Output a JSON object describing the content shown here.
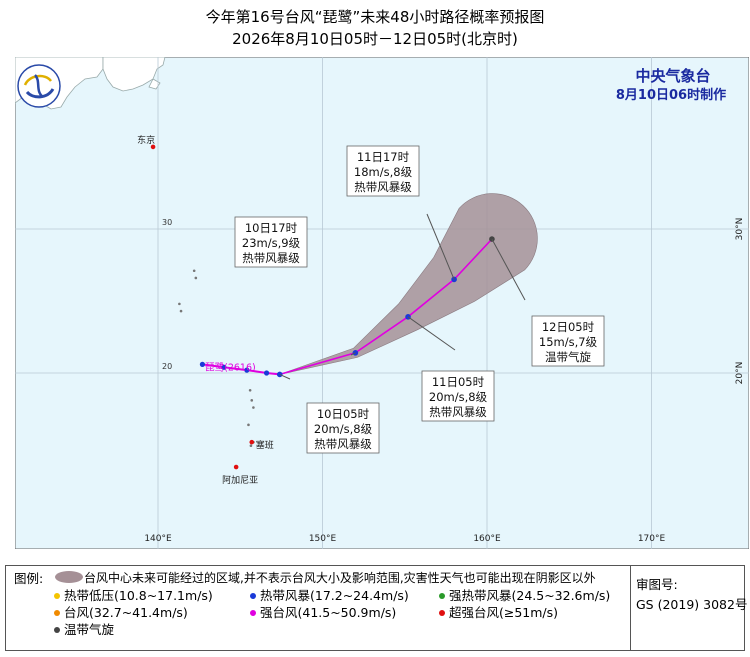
{
  "header": {
    "title": "今年第16号台风“琵鹭”未来48小时路径概率预报图",
    "subtitle": "2026年8月10日05时－12日05时(北京时)"
  },
  "agency": {
    "name": "中央气象台",
    "issued": "8月10日06时制作",
    "color": "#1a2aa0"
  },
  "map": {
    "ocean_color": "#e6f6fc",
    "land_color": "#ffffff",
    "lon_labels": [
      "140°E",
      "150°E",
      "160°E",
      "170°E"
    ],
    "lat_labels_left": [
      "30",
      "20"
    ],
    "lat_labels_right": [
      "30°N",
      "20°N"
    ],
    "places": [
      {
        "name": "东京",
        "lon": 139.7,
        "lat": 35.7
      },
      {
        "name": "塞班",
        "lon": 145.7,
        "lat": 15.2
      },
      {
        "name": "阿加尼亚",
        "lon": 144.75,
        "lat": 13.47
      }
    ],
    "storm_label": "琵鹭(2616)"
  },
  "track": {
    "line_color": "#e000e0",
    "cone_color": "#a59096",
    "past": [
      {
        "lon": 142.7,
        "lat": 20.6
      },
      {
        "lon": 144.0,
        "lat": 20.4
      },
      {
        "lon": 145.4,
        "lat": 20.2
      },
      {
        "lon": 146.6,
        "lat": 20.0
      },
      {
        "lon": 147.4,
        "lat": 19.9
      }
    ],
    "forecast": [
      {
        "lon": 147.4,
        "lat": 19.9,
        "time": "10日05时",
        "wind": "20m/s,8级",
        "grade": "热带风暴级"
      },
      {
        "lon": 152.0,
        "lat": 21.4,
        "time": "10日17时",
        "wind": "23m/s,9级",
        "grade": "热带风暴级"
      },
      {
        "lon": 155.2,
        "lat": 23.9,
        "time": "11日05时",
        "wind": "20m/s,8级",
        "grade": "热带风暴级"
      },
      {
        "lon": 158.0,
        "lat": 26.5,
        "time": "11日17时",
        "wind": "18m/s,8级",
        "grade": "热带风暴级"
      },
      {
        "lon": 160.3,
        "lat": 29.3,
        "time": "12日05时",
        "wind": "15m/s,7级",
        "grade": "温带气旋"
      }
    ]
  },
  "legend": {
    "heading": "图例:",
    "cone_desc": "台风中心未来可能经过的区域,并不表示台风大小及影响范围,灾害性天气也可能出现在阴影区以外",
    "items": [
      {
        "label": "热带低压(10.8~17.1m/s)",
        "color": "#f4c400"
      },
      {
        "label": "热带风暴(17.2~24.4m/s)",
        "color": "#1a3ad8"
      },
      {
        "label": "强热带风暴(24.5~32.6m/s)",
        "color": "#2a9a2a"
      },
      {
        "label": "台风(32.7~41.4m/s)",
        "color": "#f08a00"
      },
      {
        "label": "强台风(41.5~50.9m/s)",
        "color": "#e000e0"
      },
      {
        "label": "超强台风(≥51m/s)",
        "color": "#e01010"
      },
      {
        "label": "温带气旋",
        "color": "#444444"
      }
    ],
    "review_label": "审图号:",
    "review_number": "GS (2019) 3082号"
  }
}
